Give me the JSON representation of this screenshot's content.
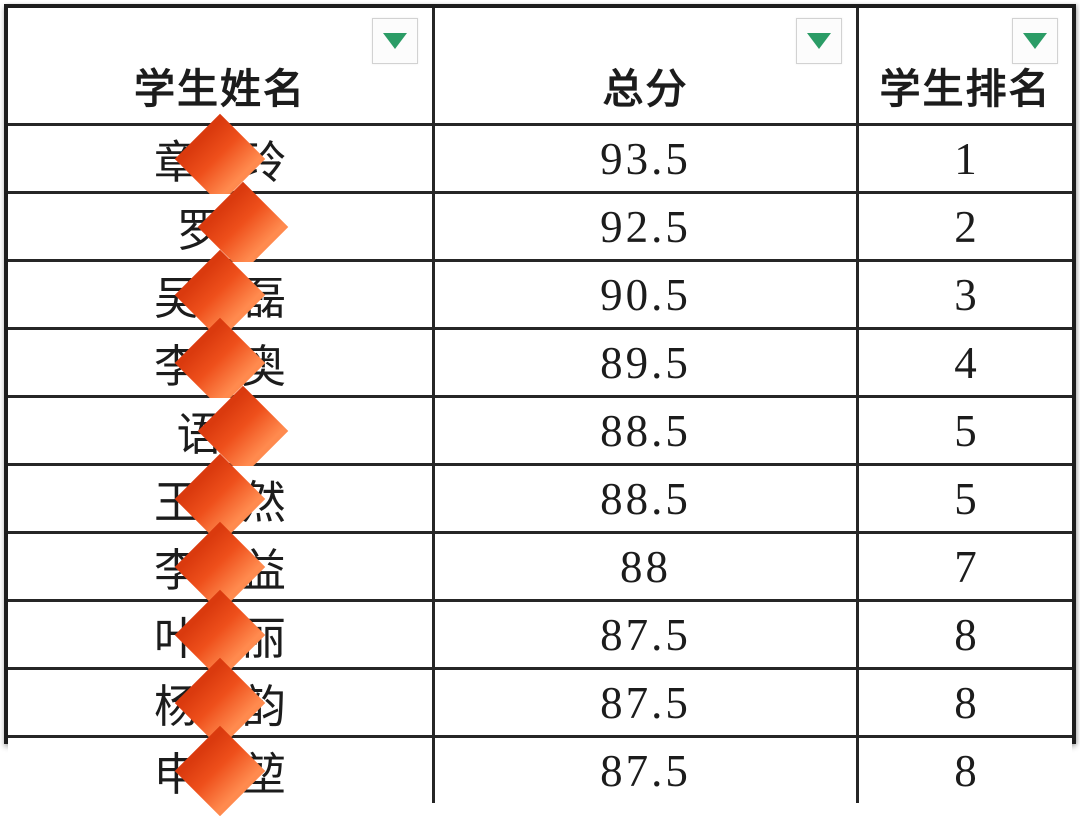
{
  "table": {
    "columns": [
      {
        "label": "学生姓名",
        "filter_icon": "triangle-down-icon"
      },
      {
        "label": "总分",
        "filter_icon": "triangle-down-icon"
      },
      {
        "label": "学生排名",
        "filter_icon": "triangle-down-icon"
      }
    ],
    "rows": [
      {
        "name_prefix": "章",
        "name_redacted": "diamond",
        "name_suffix": "玲",
        "score": "93.5",
        "rank": "1"
      },
      {
        "name_prefix": "罗",
        "name_redacted": "diamond",
        "name_suffix": "",
        "score": "92.5",
        "rank": "2"
      },
      {
        "name_prefix": "吴",
        "name_redacted": "diamond",
        "name_suffix": "磊",
        "score": "90.5",
        "rank": "3"
      },
      {
        "name_prefix": "李",
        "name_redacted": "diamond",
        "name_suffix": "奥",
        "score": "89.5",
        "rank": "4"
      },
      {
        "name_prefix": "语",
        "name_redacted": "diamond",
        "name_suffix": "",
        "score": "88.5",
        "rank": "5"
      },
      {
        "name_prefix": "王",
        "name_redacted": "diamond",
        "name_suffix": "然",
        "score": "88.5",
        "rank": "5"
      },
      {
        "name_prefix": "李",
        "name_redacted": "diamond",
        "name_suffix": "益",
        "score": "88",
        "rank": "7"
      },
      {
        "name_prefix": "叶",
        "name_redacted": "diamond",
        "name_suffix": "丽",
        "score": "87.5",
        "rank": "8"
      },
      {
        "name_prefix": "杨",
        "name_redacted": "diamond",
        "name_suffix": "韵",
        "score": "87.5",
        "rank": "8"
      },
      {
        "name_prefix": "申",
        "name_redacted": "diamond",
        "name_suffix": "堃",
        "score": "87.5",
        "rank": "8"
      }
    ]
  },
  "colors": {
    "filter_arrow_green": "#2b9c66",
    "grid_border": "#262626",
    "redaction_gradient_start": "#da3a0e",
    "redaction_gradient_end": "#ff8a4e"
  }
}
